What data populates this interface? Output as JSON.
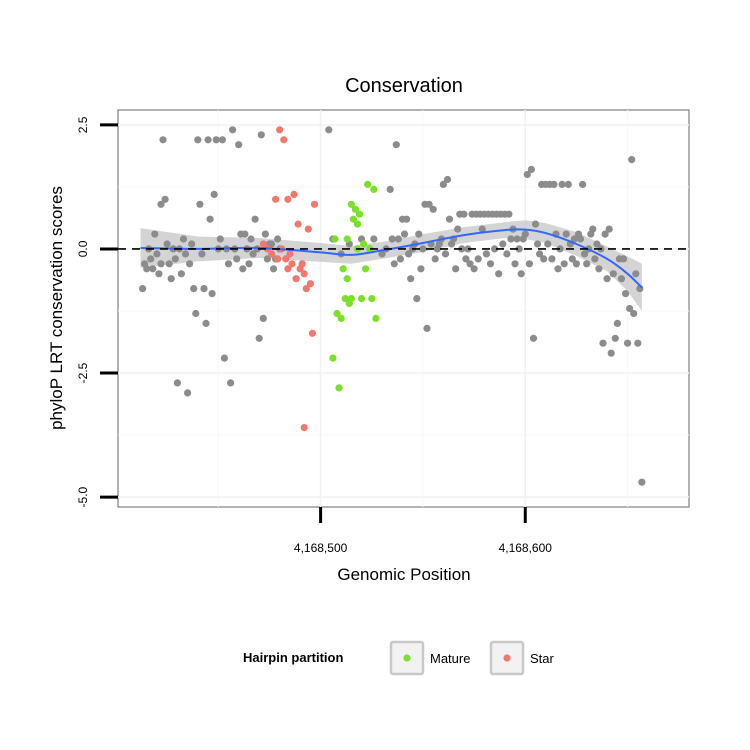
{
  "chart_data": {
    "type": "scatter",
    "title": "Conservation",
    "xlabel": "Genomic Position",
    "ylabel": "phyloP LRT conservation scores",
    "xlim": [
      4168401,
      4168680
    ],
    "ylim": [
      -5.2,
      2.8
    ],
    "x_ticks": [
      {
        "value": 4168500,
        "label": "4,168,500"
      },
      {
        "value": 4168600,
        "label": "4,168,600"
      }
    ],
    "y_ticks": [
      {
        "value": 2.5,
        "label": "2.5"
      },
      {
        "value": 0.0,
        "label": "0.0"
      },
      {
        "value": -2.5,
        "label": "-2.5"
      },
      {
        "value": -5.0,
        "label": "-5.0"
      }
    ],
    "reference_line": {
      "y": 0,
      "style": "dashed"
    },
    "grid": true,
    "legend": {
      "title": "Hairpin partition",
      "position": "bottom",
      "entries": [
        {
          "label": "Mature",
          "color": "#7ce02a"
        },
        {
          "label": "Star",
          "color": "#f0786c"
        }
      ]
    },
    "colors": {
      "other": "#8c8c8c",
      "mature": "#7ce02a",
      "star": "#f0786c",
      "smooth": "#3366ff",
      "ribbon": "#b8b8b8",
      "panel_border": "#7f7f7f"
    },
    "series": [
      {
        "group": "other",
        "points": [
          [
            4168413,
            -0.8
          ],
          [
            4168414,
            -0.3
          ],
          [
            4168415,
            -0.4
          ],
          [
            4168416,
            0.0
          ],
          [
            4168417,
            -0.2
          ],
          [
            4168418,
            -0.4
          ],
          [
            4168419,
            0.3
          ],
          [
            4168420,
            -0.1
          ],
          [
            4168421,
            -0.5
          ],
          [
            4168422,
            0.9
          ],
          [
            4168422,
            -0.3
          ],
          [
            4168423,
            2.2
          ],
          [
            4168424,
            1.0
          ],
          [
            4168425,
            0.1
          ],
          [
            4168426,
            -0.3
          ],
          [
            4168427,
            -0.6
          ],
          [
            4168428,
            0.0
          ],
          [
            4168429,
            -0.2
          ],
          [
            4168430,
            -2.7
          ],
          [
            4168431,
            0.0
          ],
          [
            4168432,
            -0.5
          ],
          [
            4168433,
            0.2
          ],
          [
            4168434,
            -0.1
          ],
          [
            4168435,
            -2.9
          ],
          [
            4168436,
            -0.3
          ],
          [
            4168437,
            0.1
          ],
          [
            4168438,
            -0.8
          ],
          [
            4168439,
            -1.3
          ],
          [
            4168440,
            2.2
          ],
          [
            4168441,
            0.9
          ],
          [
            4168442,
            -0.1
          ],
          [
            4168443,
            -0.8
          ],
          [
            4168444,
            -1.5
          ],
          [
            4168445,
            2.2
          ],
          [
            4168446,
            0.6
          ],
          [
            4168447,
            -0.9
          ],
          [
            4168448,
            1.1
          ],
          [
            4168449,
            2.2
          ],
          [
            4168450,
            0.0
          ],
          [
            4168451,
            0.2
          ],
          [
            4168452,
            2.2
          ],
          [
            4168453,
            -2.2
          ],
          [
            4168454,
            0.0
          ],
          [
            4168455,
            -0.3
          ],
          [
            4168456,
            -2.7
          ],
          [
            4168457,
            2.4
          ],
          [
            4168458,
            0.0
          ],
          [
            4168459,
            -0.2
          ],
          [
            4168460,
            2.1
          ],
          [
            4168461,
            0.3
          ],
          [
            4168462,
            -0.4
          ],
          [
            4168463,
            0.3
          ],
          [
            4168464,
            0.0
          ],
          [
            4168465,
            -0.3
          ],
          [
            4168466,
            0.2
          ],
          [
            4168467,
            -0.1
          ],
          [
            4168468,
            0.6
          ],
          [
            4168469,
            0.0
          ],
          [
            4168470,
            -1.8
          ],
          [
            4168471,
            2.3
          ],
          [
            4168472,
            -1.4
          ],
          [
            4168473,
            0.3
          ],
          [
            4168474,
            -0.2
          ],
          [
            4168475,
            0.1
          ],
          [
            4168476,
            0.1
          ],
          [
            4168477,
            -0.4
          ],
          [
            4168478,
            -0.2
          ],
          [
            4168479,
            0.2
          ],
          [
            4168480,
            0.0
          ],
          [
            4168504,
            2.4
          ],
          [
            4168506,
            0.2
          ],
          [
            4168510,
            -0.1
          ],
          [
            4168514,
            0.1
          ],
          [
            4168520,
            0.2
          ],
          [
            4168524,
            0.0
          ],
          [
            4168526,
            0.2
          ],
          [
            4168530,
            -0.1
          ],
          [
            4168532,
            0.0
          ],
          [
            4168534,
            1.2
          ],
          [
            4168535,
            0.2
          ],
          [
            4168536,
            -0.3
          ],
          [
            4168537,
            2.1
          ],
          [
            4168538,
            0.2
          ],
          [
            4168539,
            -0.2
          ],
          [
            4168540,
            0.6
          ],
          [
            4168541,
            0.3
          ],
          [
            4168542,
            0.6
          ],
          [
            4168543,
            -0.1
          ],
          [
            4168544,
            -0.6
          ],
          [
            4168545,
            0.0
          ],
          [
            4168546,
            0.1
          ],
          [
            4168547,
            -1.0
          ],
          [
            4168548,
            0.3
          ],
          [
            4168549,
            -0.4
          ],
          [
            4168550,
            0.0
          ],
          [
            4168551,
            0.9
          ],
          [
            4168552,
            -1.6
          ],
          [
            4168553,
            0.9
          ],
          [
            4168554,
            0.1
          ],
          [
            4168555,
            0.8
          ],
          [
            4168556,
            -0.2
          ],
          [
            4168557,
            0.0
          ],
          [
            4168558,
            0.1
          ],
          [
            4168559,
            0.2
          ],
          [
            4168560,
            1.3
          ],
          [
            4168561,
            -0.1
          ],
          [
            4168562,
            1.4
          ],
          [
            4168563,
            0.6
          ],
          [
            4168564,
            0.1
          ],
          [
            4168565,
            0.2
          ],
          [
            4168566,
            -0.4
          ],
          [
            4168567,
            0.4
          ],
          [
            4168568,
            0.7
          ],
          [
            4168569,
            0.0
          ],
          [
            4168570,
            0.7
          ],
          [
            4168571,
            -0.2
          ],
          [
            4168572,
            0.0
          ],
          [
            4168573,
            -0.3
          ],
          [
            4168574,
            0.7
          ],
          [
            4168575,
            -0.4
          ],
          [
            4168576,
            0.7
          ],
          [
            4168577,
            -0.2
          ],
          [
            4168578,
            0.7
          ],
          [
            4168579,
            0.4
          ],
          [
            4168580,
            0.7
          ],
          [
            4168581,
            -0.1
          ],
          [
            4168582,
            0.7
          ],
          [
            4168583,
            -0.3
          ],
          [
            4168584,
            0.7
          ],
          [
            4168585,
            0.0
          ],
          [
            4168586,
            0.7
          ],
          [
            4168587,
            -0.5
          ],
          [
            4168588,
            0.7
          ],
          [
            4168589,
            0.1
          ],
          [
            4168590,
            0.7
          ],
          [
            4168591,
            -0.1
          ],
          [
            4168592,
            0.7
          ],
          [
            4168593,
            0.2
          ],
          [
            4168594,
            0.4
          ],
          [
            4168595,
            -0.3
          ],
          [
            4168596,
            0.2
          ],
          [
            4168597,
            0.0
          ],
          [
            4168598,
            -0.5
          ],
          [
            4168599,
            0.2
          ],
          [
            4168600,
            0.3
          ],
          [
            4168601,
            1.5
          ],
          [
            4168602,
            -0.3
          ],
          [
            4168603,
            1.6
          ],
          [
            4168604,
            -1.8
          ],
          [
            4168605,
            0.5
          ],
          [
            4168606,
            0.1
          ],
          [
            4168607,
            -0.1
          ],
          [
            4168608,
            1.3
          ],
          [
            4168609,
            -0.2
          ],
          [
            4168610,
            1.3
          ],
          [
            4168611,
            0.1
          ],
          [
            4168612,
            1.3
          ],
          [
            4168613,
            -0.2
          ],
          [
            4168614,
            1.3
          ],
          [
            4168615,
            0.3
          ],
          [
            4168616,
            -0.4
          ],
          [
            4168617,
            0.0
          ],
          [
            4168618,
            1.3
          ],
          [
            4168619,
            -0.3
          ],
          [
            4168620,
            0.3
          ],
          [
            4168621,
            1.3
          ],
          [
            4168622,
            0.1
          ],
          [
            4168623,
            -0.2
          ],
          [
            4168624,
            0.2
          ],
          [
            4168625,
            -0.3
          ],
          [
            4168626,
            0.3
          ],
          [
            4168627,
            0.2
          ],
          [
            4168628,
            1.3
          ],
          [
            4168629,
            -0.1
          ],
          [
            4168630,
            -0.3
          ],
          [
            4168631,
            0.0
          ],
          [
            4168632,
            0.3
          ],
          [
            4168633,
            0.4
          ],
          [
            4168634,
            -0.2
          ],
          [
            4168635,
            0.1
          ],
          [
            4168636,
            -0.4
          ],
          [
            4168637,
            0.0
          ],
          [
            4168638,
            -1.9
          ],
          [
            4168639,
            0.3
          ],
          [
            4168640,
            -0.6
          ],
          [
            4168641,
            0.4
          ],
          [
            4168642,
            -2.1
          ],
          [
            4168643,
            -0.5
          ],
          [
            4168644,
            -1.8
          ],
          [
            4168645,
            -1.5
          ],
          [
            4168646,
            -0.2
          ],
          [
            4168647,
            -0.6
          ],
          [
            4168648,
            -0.2
          ],
          [
            4168649,
            -0.9
          ],
          [
            4168650,
            -1.9
          ],
          [
            4168651,
            -1.2
          ],
          [
            4168652,
            1.8
          ],
          [
            4168653,
            -1.3
          ],
          [
            4168654,
            -0.5
          ],
          [
            4168655,
            -1.9
          ],
          [
            4168656,
            -0.8
          ],
          [
            4168657,
            -4.7
          ]
        ]
      },
      {
        "group": "mature",
        "points": [
          [
            4168506,
            -2.2
          ],
          [
            4168507,
            0.2
          ],
          [
            4168508,
            -1.3
          ],
          [
            4168509,
            -2.8
          ],
          [
            4168510,
            -1.4
          ],
          [
            4168511,
            -0.4
          ],
          [
            4168512,
            -1.0
          ],
          [
            4168513,
            -0.6
          ],
          [
            4168514,
            -1.1
          ],
          [
            4168515,
            -1.0
          ],
          [
            4168516,
            0.6
          ],
          [
            4168517,
            0.8
          ],
          [
            4168518,
            0.5
          ],
          [
            4168519,
            0.7
          ],
          [
            4168520,
            -1.0
          ],
          [
            4168521,
            0.1
          ],
          [
            4168522,
            -0.4
          ],
          [
            4168523,
            1.3
          ],
          [
            4168524,
            0.0
          ],
          [
            4168525,
            -1.0
          ],
          [
            4168526,
            1.2
          ],
          [
            4168527,
            -1.4
          ],
          [
            4168515,
            0.9
          ],
          [
            4168513,
            0.2
          ],
          [
            4168518,
            0.0
          ]
        ]
      },
      {
        "group": "star",
        "points": [
          [
            4168472,
            0.1
          ],
          [
            4168474,
            0.0
          ],
          [
            4168476,
            -0.1
          ],
          [
            4168478,
            1.0
          ],
          [
            4168479,
            -0.2
          ],
          [
            4168480,
            2.4
          ],
          [
            4168481,
            0.0
          ],
          [
            4168482,
            2.2
          ],
          [
            4168483,
            -0.2
          ],
          [
            4168484,
            1.0
          ],
          [
            4168485,
            -0.1
          ],
          [
            4168486,
            -0.3
          ],
          [
            4168487,
            1.1
          ],
          [
            4168488,
            -0.6
          ],
          [
            4168489,
            0.5
          ],
          [
            4168490,
            -0.4
          ],
          [
            4168491,
            -0.3
          ],
          [
            4168492,
            -3.6
          ],
          [
            4168493,
            -0.8
          ],
          [
            4168494,
            0.4
          ],
          [
            4168495,
            -0.7
          ],
          [
            4168496,
            -1.7
          ],
          [
            4168497,
            0.9
          ],
          [
            4168484,
            -0.4
          ],
          [
            4168492,
            -0.5
          ]
        ]
      }
    ],
    "smooth": {
      "x": [
        4168412,
        4168440,
        4168470,
        4168500,
        4168515,
        4168530,
        4168550,
        4168570,
        4168590,
        4168600,
        4168610,
        4168625,
        4168640,
        4168650,
        4168657
      ],
      "y": [
        0.02,
        0.0,
        0.02,
        -0.07,
        -0.12,
        -0.03,
        0.12,
        0.28,
        0.38,
        0.39,
        0.32,
        0.1,
        -0.2,
        -0.5,
        -0.78
      ],
      "upper": [
        0.42,
        0.25,
        0.22,
        0.12,
        0.06,
        0.14,
        0.3,
        0.44,
        0.54,
        0.58,
        0.52,
        0.34,
        0.05,
        -0.15,
        -0.3
      ],
      "lower": [
        -0.38,
        -0.25,
        -0.18,
        -0.26,
        -0.3,
        -0.2,
        -0.06,
        0.12,
        0.22,
        0.2,
        0.12,
        -0.14,
        -0.45,
        -0.85,
        -1.25
      ]
    }
  }
}
